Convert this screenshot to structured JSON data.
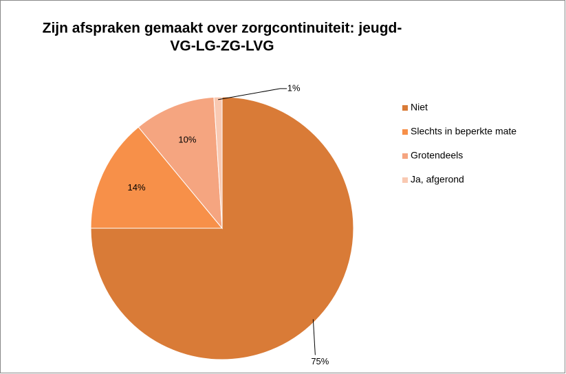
{
  "chart_data": {
    "type": "pie",
    "title": [
      "Zijn afspraken gemaakt over zorgcontinuiteit: jeugd-",
      "VG-LG-ZG-LVG"
    ],
    "categories": [
      "Niet",
      "Slechts in beperkte mate",
      "Grotendeels",
      "Ja, afgerond"
    ],
    "values": [
      75,
      14,
      10,
      1
    ],
    "value_labels": [
      "75%",
      "14%",
      "10%",
      "1%"
    ],
    "colors": [
      "#d97b37",
      "#f79049",
      "#f5a580",
      "#f9c9b2"
    ],
    "legend": "right"
  }
}
